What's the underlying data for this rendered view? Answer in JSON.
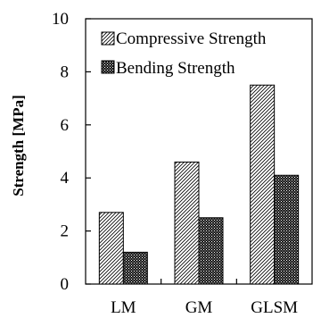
{
  "chart_data": {
    "type": "bar",
    "ylabel": "Strength [MPa]",
    "ylim": [
      0,
      10
    ],
    "yticks": [
      0,
      2,
      4,
      6,
      8,
      10
    ],
    "categories": [
      "LM",
      "GM",
      "GLSM"
    ],
    "series": [
      {
        "name": "Compressive Strength",
        "values": [
          2.7,
          4.6,
          7.5
        ],
        "fill": "diagonal-hatch"
      },
      {
        "name": "Bending Strength",
        "values": [
          1.2,
          2.5,
          4.1
        ],
        "fill": "dense-dots"
      }
    ],
    "legend_position": "top-left",
    "grid": false
  }
}
